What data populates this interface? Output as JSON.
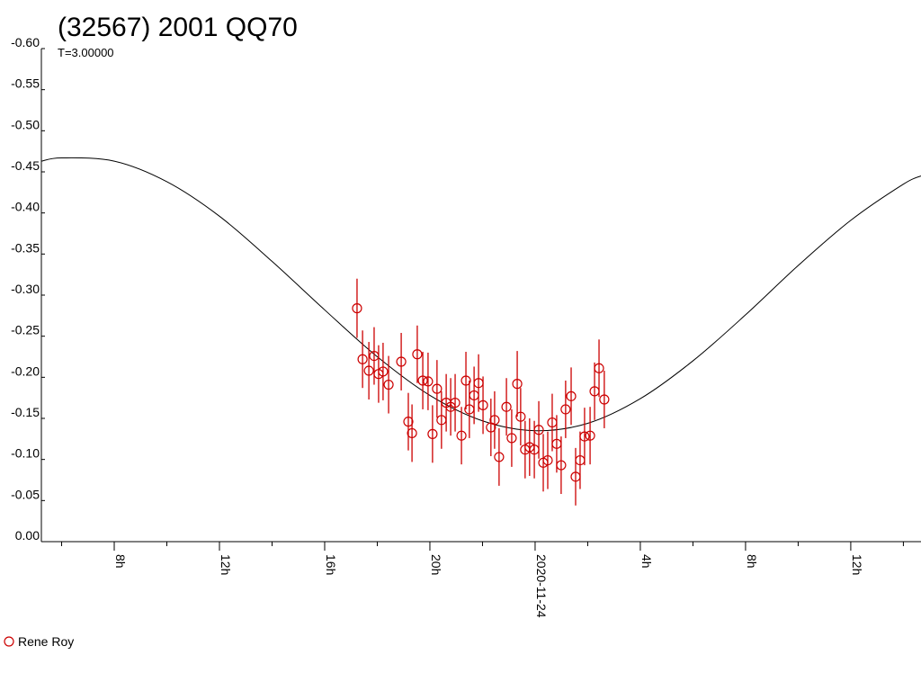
{
  "chart_data": {
    "type": "scatter",
    "title": "(32567) 2001 QQ70",
    "subtitle": "T=3.00000",
    "xlim": [
      5.23,
      38.67
    ],
    "ylim": [
      0,
      -0.6
    ],
    "xticks": [
      {
        "value": 8,
        "label": "8h"
      },
      {
        "value": 12,
        "label": "12h"
      },
      {
        "value": 16,
        "label": "16h"
      },
      {
        "value": 20,
        "label": "20h"
      },
      {
        "value": 24,
        "label": "2020-11-24"
      },
      {
        "value": 28,
        "label": "4h"
      },
      {
        "value": 32,
        "label": "8h"
      },
      {
        "value": 36,
        "label": "12h"
      }
    ],
    "xminor_ticks": [
      6,
      10,
      14,
      18,
      22,
      26,
      30,
      34,
      38
    ],
    "yticks": [
      {
        "value": 0,
        "label": "0.00"
      },
      {
        "value": -0.05,
        "label": "-0.05"
      },
      {
        "value": -0.1,
        "label": "-0.10"
      },
      {
        "value": -0.15,
        "label": "-0.15"
      },
      {
        "value": -0.2,
        "label": "-0.20"
      },
      {
        "value": -0.25,
        "label": "-0.25"
      },
      {
        "value": -0.3,
        "label": "-0.30"
      },
      {
        "value": -0.35,
        "label": "-0.35"
      },
      {
        "value": -0.4,
        "label": "-0.40"
      },
      {
        "value": -0.45,
        "label": "-0.45"
      },
      {
        "value": -0.5,
        "label": "-0.50"
      },
      {
        "value": -0.55,
        "label": "-0.55"
      },
      {
        "value": -0.6,
        "label": "-0.60"
      }
    ],
    "series": [
      {
        "name": "Rene Roy",
        "color": "#cc0000",
        "x": [
          17.23,
          17.44,
          17.68,
          17.88,
          18.05,
          18.22,
          18.43,
          18.91,
          19.18,
          19.32,
          19.52,
          19.73,
          19.93,
          20.1,
          20.27,
          20.44,
          20.62,
          20.79,
          20.96,
          21.2,
          21.37,
          21.5,
          21.68,
          21.85,
          22.02,
          22.32,
          22.46,
          22.63,
          22.91,
          23.11,
          23.32,
          23.45,
          23.62,
          23.79,
          23.97,
          24.14,
          24.31,
          24.48,
          24.65,
          24.82,
          24.99,
          25.16,
          25.37,
          25.54,
          25.71,
          25.88,
          26.09,
          26.26,
          26.43,
          26.63
        ],
        "values": [
          -0.284,
          -0.222,
          -0.208,
          -0.226,
          -0.204,
          -0.207,
          -0.191,
          -0.219,
          -0.146,
          -0.132,
          -0.228,
          -0.196,
          -0.195,
          -0.131,
          -0.186,
          -0.148,
          -0.169,
          -0.164,
          -0.169,
          -0.129,
          -0.196,
          -0.161,
          -0.178,
          -0.193,
          -0.166,
          -0.139,
          -0.148,
          -0.103,
          -0.164,
          -0.126,
          -0.192,
          -0.152,
          -0.112,
          -0.115,
          -0.112,
          -0.136,
          -0.096,
          -0.099,
          -0.145,
          -0.119,
          -0.093,
          -0.161,
          -0.177,
          -0.079,
          -0.099,
          -0.128,
          -0.129,
          -0.183,
          -0.211,
          -0.173
        ],
        "errors": [
          0.036,
          0.035,
          0.035,
          0.035,
          0.035,
          0.035,
          0.035,
          0.035,
          0.035,
          0.035,
          0.035,
          0.035,
          0.035,
          0.035,
          0.035,
          0.035,
          0.035,
          0.035,
          0.035,
          0.035,
          0.035,
          0.035,
          0.035,
          0.035,
          0.035,
          0.035,
          0.035,
          0.035,
          0.035,
          0.035,
          0.04,
          0.035,
          0.035,
          0.035,
          0.035,
          0.035,
          0.035,
          0.035,
          0.035,
          0.035,
          0.035,
          0.035,
          0.035,
          0.035,
          0.035,
          0.035,
          0.035,
          0.035,
          0.035,
          0.035
        ]
      }
    ],
    "fit": {
      "color": "#000000",
      "x": [
        5.23,
        6,
        8,
        10,
        12,
        14,
        16,
        18,
        20,
        22,
        24,
        26,
        28,
        30,
        32,
        34,
        36,
        38,
        38.67
      ],
      "values": [
        -0.463,
        -0.467,
        -0.463,
        -0.438,
        -0.396,
        -0.341,
        -0.282,
        -0.225,
        -0.178,
        -0.147,
        -0.135,
        -0.144,
        -0.174,
        -0.22,
        -0.276,
        -0.336,
        -0.391,
        -0.435,
        -0.445
      ]
    }
  }
}
